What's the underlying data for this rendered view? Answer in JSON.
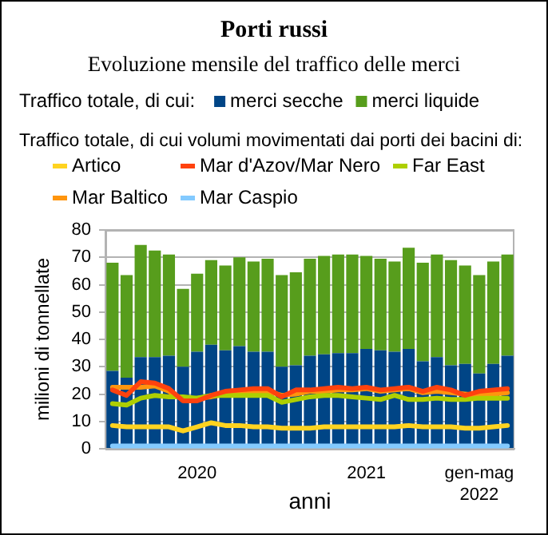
{
  "chart_data": {
    "type": "bar",
    "title": "Porti russi",
    "subtitle": "Evoluzione mensile del traffico delle merci",
    "xlabel": "anni",
    "ylabel": "milioni di tonnellate",
    "legend_title": "Traffico totale, di cui:",
    "annotations": [
      "Traffico totale, di cui volumi movimentati dai porti dei bacini di:"
    ],
    "categories": [
      null,
      null,
      null,
      null,
      null,
      null,
      "2020",
      null,
      null,
      null,
      null,
      null,
      null,
      null,
      null,
      null,
      null,
      null,
      "2021",
      null,
      null,
      null,
      null,
      null,
      null,
      null,
      "gen-mag 2022",
      null,
      null
    ],
    "stacked": true,
    "series": [
      {
        "name": "merci secche",
        "color": "#004586",
        "values": [
          28.5,
          26,
          33.5,
          33.5,
          34,
          30,
          35.5,
          38,
          36,
          37.5,
          35.5,
          35.5,
          30,
          30.5,
          34,
          34.5,
          35,
          35,
          36.5,
          36,
          35.5,
          36.5,
          32,
          33.5,
          30.5,
          31,
          27.5,
          31,
          34
        ]
      },
      {
        "name": "merci liquide",
        "color": "#579d1c",
        "values": [
          39.5,
          37.5,
          41,
          39,
          37,
          28.5,
          28.5,
          31,
          31,
          32.5,
          33,
          34,
          33.5,
          34,
          35.5,
          36,
          36,
          36,
          34,
          33.5,
          33,
          37,
          36,
          37.5,
          38.5,
          36,
          36,
          37.5,
          37
        ]
      },
      {
        "name": "Artico",
        "type": "line",
        "color": "#ffd320",
        "values": [
          8.5,
          8,
          8,
          8,
          8,
          6.5,
          8,
          9.5,
          8.5,
          8.5,
          8,
          8,
          7.5,
          7.5,
          7.5,
          8,
          8,
          8,
          8,
          8,
          8,
          8.5,
          8,
          8,
          8,
          7.5,
          7.5,
          8,
          8.5
        ]
      },
      {
        "name": "Mar d'Azov/Mar Nero",
        "type": "line",
        "color": "#ff420e",
        "values": [
          21.5,
          19.5,
          24.5,
          24,
          22,
          17.5,
          17.5,
          19.5,
          21,
          21.5,
          22,
          22,
          19,
          21.5,
          21.5,
          22,
          22.5,
          22,
          22.5,
          21.5,
          22,
          22.5,
          21,
          22.5,
          21.5,
          19.5,
          21,
          21.5,
          22
        ]
      },
      {
        "name": "Far East",
        "type": "line",
        "color": "#aecf00",
        "values": [
          16.5,
          16,
          18.5,
          19.5,
          19,
          19,
          18.5,
          19.5,
          19.5,
          19.5,
          19.5,
          19.5,
          17,
          18,
          19,
          19.5,
          19.5,
          19,
          18.5,
          18,
          19.5,
          18,
          18,
          18.5,
          18,
          18,
          18.5,
          18.5,
          18.5
        ]
      },
      {
        "name": "Mar Baltico",
        "type": "line",
        "color": "#ff950e",
        "values": [
          22.5,
          22.5,
          22.5,
          23,
          21,
          18,
          18.5,
          19,
          20,
          20.5,
          21,
          21,
          19.5,
          20,
          21,
          21,
          21.5,
          21.5,
          22,
          21,
          21.5,
          22,
          20.5,
          21,
          20.5,
          20,
          19.5,
          20,
          20.5
        ]
      },
      {
        "name": "Mar Caspio",
        "type": "line",
        "color": "#83caff",
        "values": [
          1,
          1,
          1,
          1,
          1,
          1,
          1,
          1,
          1,
          1,
          1,
          1,
          1,
          1,
          1,
          1,
          1,
          1,
          1,
          1,
          1,
          1,
          1,
          1,
          1,
          1,
          1,
          1,
          1
        ]
      }
    ],
    "ylim": [
      0,
      80
    ],
    "yticks": [
      0,
      10,
      20,
      30,
      40,
      50,
      60,
      70,
      80
    ],
    "grid": "y",
    "legend": "top"
  }
}
